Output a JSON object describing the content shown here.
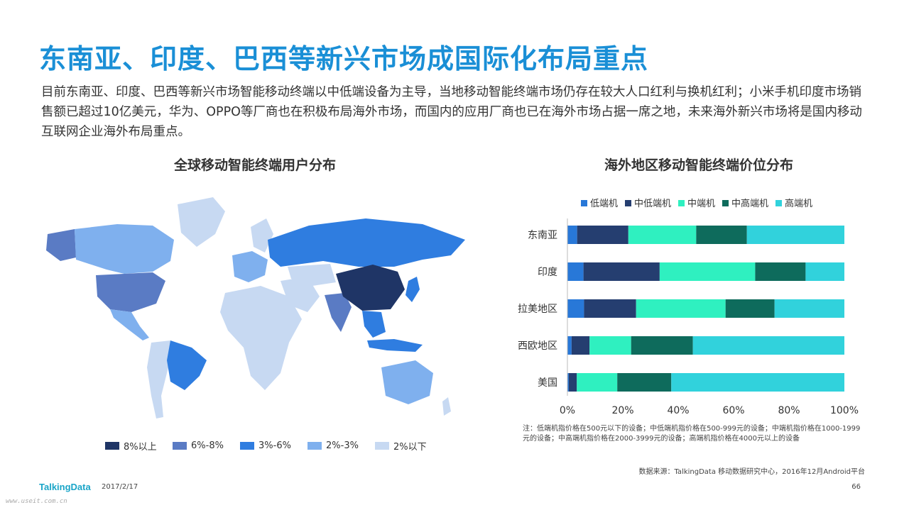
{
  "title": "东南亚、印度、巴西等新兴市场成国际化布局重点",
  "description": "目前东南亚、印度、巴西等新兴市场智能移动终端以中低端设备为主导，当地移动智能终端市场仍存在较大人口红利与换机红利；小米手机印度市场销售额已超过10亿美元，华为、OPPO等厂商也在积极布局海外市场，而国内的应用厂商也已在海外市场占据一席之地，未来海外新兴市场将是国内移动互联网企业海外布局重点。",
  "map": {
    "title": "全球移动智能终端用户分布",
    "legend": [
      {
        "label": "8%以上",
        "color": "#1f3566"
      },
      {
        "label": "6%-8%",
        "color": "#5a7bc4"
      },
      {
        "label": "3%-6%",
        "color": "#2f7de0"
      },
      {
        "label": "2%-3%",
        "color": "#7fb0ee"
      },
      {
        "label": "2%以下",
        "color": "#c7d9f2"
      }
    ]
  },
  "chart_title": "海外地区移动智能终端价位分布",
  "chart_data": {
    "type": "bar",
    "orientation": "horizontal",
    "stacked": true,
    "title": "海外地区移动智能终端价位分布",
    "categories": [
      "东南亚",
      "印度",
      "拉美地区",
      "西欧地区",
      "美国"
    ],
    "series": [
      {
        "name": "低端机",
        "color": "#2878d8",
        "values": [
          3.5,
          5.8,
          6.0,
          1.5,
          0.5
        ]
      },
      {
        "name": "中低端机",
        "color": "#253e70",
        "values": [
          18.5,
          27.5,
          18.8,
          6.5,
          2.9
        ]
      },
      {
        "name": "中端机",
        "color": "#2ff0c0",
        "values": [
          24.5,
          34.5,
          32.3,
          15.0,
          14.6
        ]
      },
      {
        "name": "中高端机",
        "color": "#0e6b5c",
        "values": [
          18.3,
          18.2,
          17.7,
          22.3,
          19.5
        ]
      },
      {
        "name": "高端机",
        "color": "#31d2dc",
        "values": [
          35.2,
          14.0,
          25.2,
          54.7,
          62.5
        ]
      }
    ],
    "xlim": [
      0,
      100
    ],
    "x_ticks": [
      "0%",
      "20%",
      "40%",
      "60%",
      "80%",
      "100%"
    ],
    "legend_position": "top",
    "grid": false
  },
  "note": "注：低端机指价格在500元以下的设备；中低端机指价格在500-999元的设备；中端机指价格在1000-1999元的设备；中高端机指价格在2000-3999元的设备；高端机指价格在4000元以上的设备",
  "source": "数据来源：TalkingData 移动数据研究中心，2016年12月Android平台",
  "footer": {
    "logo": "TalkingData",
    "date": "2017/2/17",
    "page": "66",
    "watermark": "www.useit.com.cn"
  }
}
